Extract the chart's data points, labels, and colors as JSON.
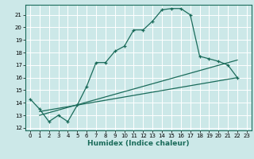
{
  "xlabel": "Humidex (Indice chaleur)",
  "xlim": [
    -0.5,
    23.5
  ],
  "ylim": [
    11.8,
    21.8
  ],
  "yticks": [
    12,
    13,
    14,
    15,
    16,
    17,
    18,
    19,
    20,
    21
  ],
  "xticks": [
    0,
    1,
    2,
    3,
    4,
    5,
    6,
    7,
    8,
    9,
    10,
    11,
    12,
    13,
    14,
    15,
    16,
    17,
    18,
    19,
    20,
    21,
    22,
    23
  ],
  "xtick_labels": [
    "0",
    "1",
    "2",
    "3",
    "4",
    "5",
    "6",
    "7",
    "8",
    "9",
    "10",
    "11",
    "12",
    "13",
    "14",
    "15",
    "16",
    "17",
    "18",
    "19",
    "20",
    "21",
    "22",
    "23"
  ],
  "bg_color": "#cce8e8",
  "line_color": "#1a6b5a",
  "grid_color": "#ffffff",
  "line1_x": [
    0,
    1,
    2,
    3,
    4,
    5,
    6,
    7,
    8,
    9,
    10,
    11,
    12,
    13,
    14,
    15,
    16,
    17,
    18,
    19,
    20,
    21,
    22
  ],
  "line1_y": [
    14.3,
    13.5,
    12.5,
    13.0,
    12.5,
    13.8,
    15.3,
    17.2,
    17.2,
    18.1,
    18.5,
    19.8,
    19.8,
    20.5,
    21.4,
    21.5,
    21.5,
    21.0,
    17.7,
    17.5,
    17.3,
    17.0,
    16.0
  ],
  "line2_x": [
    1,
    22
  ],
  "line2_y": [
    13.3,
    16.0
  ],
  "line3_x": [
    1,
    22
  ],
  "line3_y": [
    13.0,
    17.4
  ],
  "font_size_ticks": 5,
  "font_size_xlabel": 6.5
}
